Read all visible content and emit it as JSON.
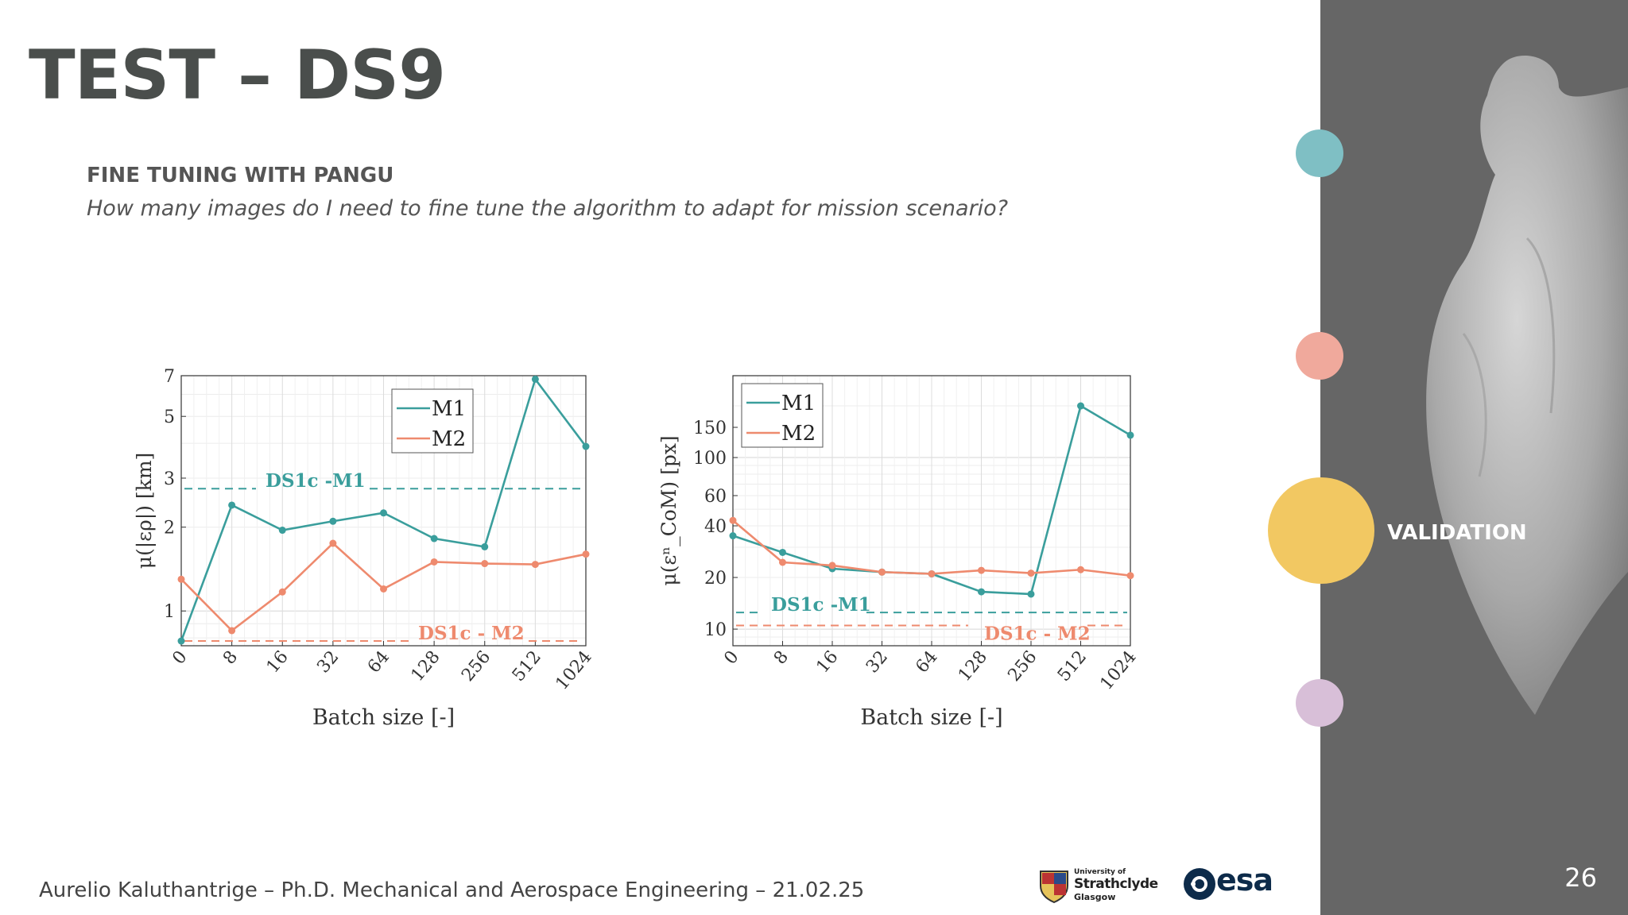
{
  "slide": {
    "title": "TEST – DS9",
    "subtitle": "FINE TUNING WITH PANGU",
    "question": "How many images do I need to fine tune the algorithm to adapt for mission scenario?",
    "footer": "Aurelio Kaluthantrige – Ph.D. Mechanical and Aerospace Engineering – 21.02.25",
    "page_number": "26"
  },
  "sidebar": {
    "active_label": "VALIDATION",
    "dots": [
      {
        "name": "teal",
        "color": "#7fbfc4",
        "active": false
      },
      {
        "name": "salmon",
        "color": "#f0a99c",
        "active": false
      },
      {
        "name": "yellow",
        "color": "#f2c862",
        "active": true
      },
      {
        "name": "lavender",
        "color": "#d8bfd8",
        "active": false
      }
    ]
  },
  "logos": {
    "strathclyde_small": "University of",
    "strathclyde_name": "Strathclyde",
    "strathclyde_city": "Glasgow",
    "esa": "esa"
  },
  "colors": {
    "M1": "#3a9e9c",
    "M2": "#ee8a6e",
    "title": "#4a4e4c",
    "sidebar": "#666666"
  },
  "chart_data": [
    {
      "type": "line",
      "categories": [
        "0",
        "8",
        "16",
        "32",
        "64",
        "128",
        "256",
        "512",
        "1024"
      ],
      "xlabel": "Batch size [-]",
      "ylabel": "μ(|ερ|) [km]",
      "yscale": "log",
      "ylim": [
        0.75,
        7
      ],
      "yticks": [
        "1",
        "2",
        "3",
        "5",
        "7"
      ],
      "legend": "top-right",
      "grid": true,
      "series": [
        {
          "name": "M1",
          "values": [
            0.78,
            2.4,
            1.95,
            2.1,
            2.25,
            1.82,
            1.7,
            6.8,
            3.9
          ]
        },
        {
          "name": "M2",
          "values": [
            1.3,
            0.85,
            1.17,
            1.75,
            1.2,
            1.5,
            1.48,
            1.47,
            1.6
          ]
        }
      ],
      "reference_lines": [
        {
          "label": "DS1c -M1",
          "value": 2.75,
          "series": "M1"
        },
        {
          "label": "DS1c - M2",
          "value": 0.78,
          "series": "M2"
        }
      ]
    },
    {
      "type": "line",
      "categories": [
        "0",
        "8",
        "16",
        "32",
        "64",
        "128",
        "256",
        "512",
        "1024"
      ],
      "xlabel": "Batch size [-]",
      "ylabel": "μ(εⁿ_CoM) [px]",
      "yscale": "log",
      "ylim": [
        8,
        300
      ],
      "yticks": [
        "10",
        "20",
        "40",
        "60",
        "100",
        "150"
      ],
      "legend": "top-left",
      "grid": true,
      "series": [
        {
          "name": "M1",
          "values": [
            35,
            28,
            22.5,
            21.5,
            21,
            16.5,
            16,
            200,
            135
          ]
        },
        {
          "name": "M2",
          "values": [
            43,
            24.5,
            23.5,
            21.5,
            21,
            22,
            21.2,
            22.2,
            20.5
          ]
        }
      ],
      "reference_lines": [
        {
          "label": "DS1c -M1",
          "value": 12.5,
          "series": "M1"
        },
        {
          "label": "DS1c - M2",
          "value": 10.5,
          "series": "M2"
        }
      ]
    }
  ]
}
